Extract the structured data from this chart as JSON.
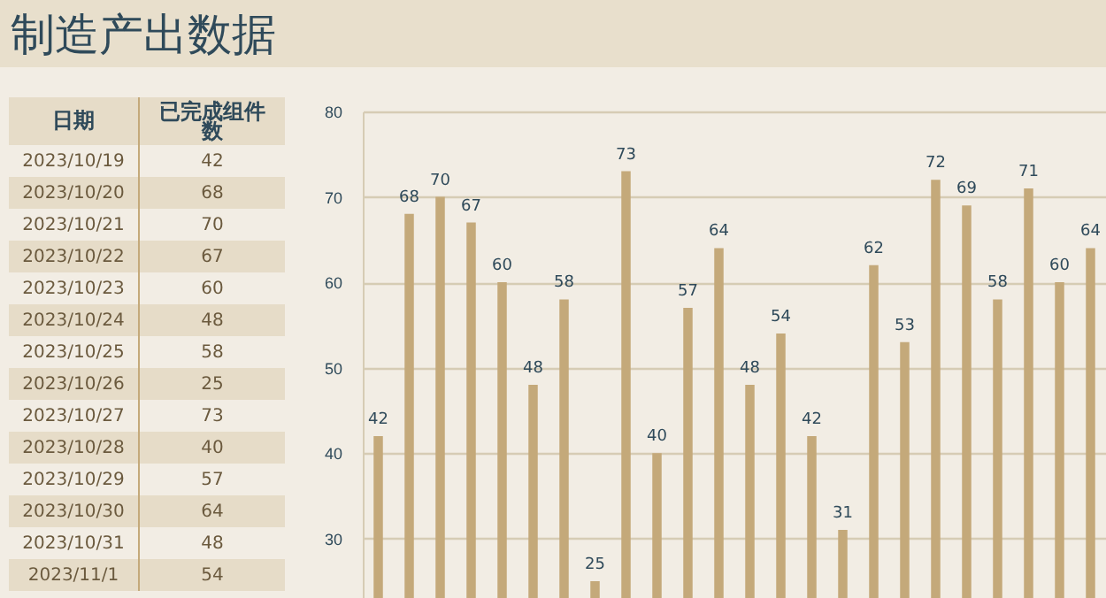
{
  "chart_data": [
    {
      "type": "other",
      "title": "制造产出数据",
      "xlabel": "日期",
      "ylabel": "已完成组件数",
      "categories": [
        "2023/10/19",
        "2023/10/20",
        "2023/10/21",
        "2023/10/22",
        "2023/10/23",
        "2023/10/24",
        "2023/10/25",
        "2023/10/26",
        "2023/10/27",
        "2023/10/28",
        "2023/10/29",
        "2023/10/30",
        "2023/10/31",
        "2023/11/1"
      ],
      "annotations": [
        "42",
        "68",
        "70",
        "67",
        "60",
        "48",
        "58",
        "25",
        "73",
        "40",
        "57",
        "64",
        "48",
        "54"
      ]
    },
    {
      "type": "bar",
      "categories": [
        null,
        null,
        null,
        null,
        null,
        null,
        null,
        null,
        null,
        null,
        null,
        null,
        null,
        null,
        null,
        null,
        null,
        null,
        null,
        null,
        null,
        null,
        null,
        null
      ],
      "values": [
        42,
        68,
        70,
        67,
        60,
        48,
        58,
        25,
        73,
        40,
        57,
        64,
        48,
        54,
        42,
        31,
        62,
        53,
        72,
        69,
        58,
        71,
        60,
        64
      ],
      "color": "#c4a97a",
      "ylim": [
        22,
        80
      ],
      "yticks": [
        30,
        40,
        50,
        60,
        70,
        80
      ],
      "grid": "y",
      "tick_labels": "y",
      "data_labels": true
    }
  ]
}
